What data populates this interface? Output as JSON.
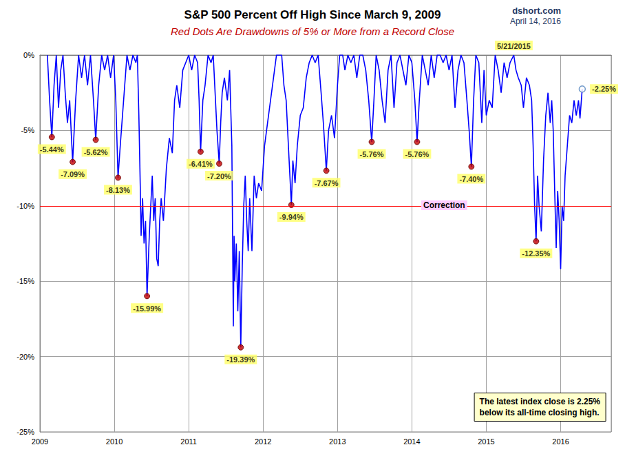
{
  "chart_data": {
    "type": "line",
    "title": "S&P 500 Percent Off High Since March 9, 2009",
    "subtitle": "Red Dots Are Drawdowns of 5% or More from a Record Close",
    "source": "dshort.com",
    "date": "April 14, 2016",
    "color": "#0000ff",
    "grid": true,
    "xlim": [
      2009,
      2016.68
    ],
    "xticks": [
      2009,
      2010,
      2011,
      2012,
      2013,
      2014,
      2015,
      2016
    ],
    "ylim": [
      -25,
      0
    ],
    "yticks": [
      {
        "value": -25,
        "label": "-25%"
      },
      {
        "value": -20,
        "label": "-20%"
      },
      {
        "value": -15,
        "label": "-15%"
      },
      {
        "value": -10,
        "label": "-10%"
      },
      {
        "value": -5,
        "label": "-5%"
      },
      {
        "value": 0,
        "label": "0%"
      }
    ],
    "x": [
      2009.1,
      2009.13,
      2009.16,
      2009.19,
      2009.22,
      2009.25,
      2009.28,
      2009.31,
      2009.34,
      2009.37,
      2009.4,
      2009.44,
      2009.48,
      2009.52,
      2009.56,
      2009.6,
      2009.64,
      2009.68,
      2009.72,
      2009.75,
      2009.79,
      2009.83,
      2009.87,
      2009.91,
      2009.95,
      2009.99,
      2010.02,
      2010.05,
      2010.08,
      2010.11,
      2010.14,
      2010.17,
      2010.21,
      2010.25,
      2010.29,
      2010.31,
      2010.33,
      2010.35,
      2010.36,
      2010.38,
      2010.4,
      2010.42,
      2010.44,
      2010.47,
      2010.49,
      2010.51,
      2010.53,
      2010.55,
      2010.57,
      2010.59,
      2010.61,
      2010.63,
      2010.66,
      2010.7,
      2010.74,
      2010.78,
      2010.81,
      2010.84,
      2010.88,
      2010.92,
      2010.96,
      2011.0,
      2011.04,
      2011.08,
      2011.12,
      2011.14,
      2011.16,
      2011.19,
      2011.22,
      2011.26,
      2011.3,
      2011.33,
      2011.36,
      2011.38,
      2011.41,
      2011.43,
      2011.45,
      2011.48,
      2011.52,
      2011.55,
      2011.58,
      2011.59,
      2011.6,
      2011.61,
      2011.62,
      2011.64,
      2011.66,
      2011.68,
      2011.7,
      2011.72,
      2011.74,
      2011.76,
      2011.78,
      2011.8,
      2011.82,
      2011.85,
      2011.88,
      2011.91,
      2011.94,
      2011.98,
      2012.02,
      2012.06,
      2012.1,
      2012.14,
      2012.18,
      2012.22,
      2012.25,
      2012.28,
      2012.31,
      2012.33,
      2012.35,
      2012.38,
      2012.4,
      2012.43,
      2012.46,
      2012.5,
      2012.54,
      2012.58,
      2012.62,
      2012.66,
      2012.7,
      2012.74,
      2012.78,
      2012.81,
      2012.85,
      2012.88,
      2012.92,
      2012.96,
      2013.0,
      2013.03,
      2013.07,
      2013.1,
      2013.14,
      2013.18,
      2013.22,
      2013.26,
      2013.3,
      2013.34,
      2013.38,
      2013.42,
      2013.46,
      2013.49,
      2013.52,
      2013.56,
      2013.6,
      2013.64,
      2013.68,
      2013.72,
      2013.76,
      2013.8,
      2013.84,
      2013.88,
      2013.92,
      2013.96,
      2014.0,
      2014.04,
      2014.07,
      2014.1,
      2014.14,
      2014.18,
      2014.22,
      2014.26,
      2014.3,
      2014.34,
      2014.38,
      2014.42,
      2014.46,
      2014.5,
      2014.54,
      2014.58,
      2014.62,
      2014.66,
      2014.7,
      2014.74,
      2014.77,
      2014.8,
      2014.83,
      2014.86,
      2014.9,
      2014.94,
      2014.97,
      2015.0,
      2015.04,
      2015.08,
      2015.12,
      2015.16,
      2015.2,
      2015.24,
      2015.28,
      2015.32,
      2015.37,
      2015.4,
      2015.43,
      2015.47,
      2015.5,
      2015.54,
      2015.58,
      2015.61,
      2015.63,
      2015.65,
      2015.67,
      2015.69,
      2015.71,
      2015.74,
      2015.77,
      2015.8,
      2015.83,
      2015.86,
      2015.88,
      2015.9,
      2015.92,
      2015.94,
      2015.96,
      2015.98,
      2016.0,
      2016.02,
      2016.04,
      2016.06,
      2016.09,
      2016.12,
      2016.15,
      2016.18,
      2016.21,
      2016.24,
      2016.26,
      2016.29
    ],
    "values": [
      0,
      -3,
      -5.44,
      -2,
      0,
      -3.5,
      -1,
      0,
      -2.5,
      -4.5,
      -3,
      -7.09,
      -3,
      0,
      -1.5,
      0,
      -2,
      0,
      -3,
      -5.62,
      -2,
      0,
      -1,
      0,
      -1.5,
      0,
      -3,
      -8.13,
      -6,
      -4,
      -2,
      0,
      -1,
      0,
      -0.5,
      0,
      -4,
      -9,
      -12,
      -9.5,
      -12.5,
      -11,
      -15.99,
      -12,
      -10,
      -8,
      -11,
      -9.5,
      -13.5,
      -14,
      -11,
      -9.5,
      -11,
      -7.5,
      -5.5,
      -6.5,
      -3,
      -2,
      -3.5,
      -1,
      -0.5,
      0,
      -1,
      0,
      -0.5,
      -3,
      -6.41,
      -3,
      -2,
      0,
      -0.5,
      0,
      -3,
      -5,
      -7.2,
      -4.5,
      -2.5,
      -1.5,
      -3,
      -1,
      -6,
      -12,
      -18,
      -12,
      -15,
      -12.5,
      -17,
      -13,
      -19.39,
      -14,
      -10,
      -8,
      -11,
      -13,
      -9.5,
      -13,
      -8,
      -9.5,
      -8.5,
      -9,
      -6,
      -4.5,
      -3,
      -1.5,
      0,
      0,
      0,
      -2,
      -3,
      -5,
      -7,
      -9.94,
      -7,
      -8.5,
      -6,
      -4,
      -3.5,
      -1.5,
      -0.5,
      0,
      -0.5,
      0,
      -2.5,
      -4.5,
      -7.67,
      -5,
      -4,
      -5.5,
      -2,
      0,
      0,
      -1,
      0,
      -0.5,
      0,
      -1.5,
      0,
      0,
      -1,
      -3,
      -5.76,
      -3,
      0,
      -1,
      -3,
      -4.5,
      -1,
      0,
      -3.5,
      -0.5,
      0,
      -1,
      -2,
      0,
      -0.5,
      -3,
      -5.76,
      -3,
      0,
      -1,
      -2,
      0,
      -1.5,
      0,
      0,
      -0.5,
      0,
      -1,
      0,
      -3.5,
      -1,
      0,
      -0.5,
      -3,
      -5,
      -7.4,
      -3,
      0,
      -0.5,
      -4.5,
      -1,
      -4,
      -3,
      -3.5,
      0,
      -1,
      -2.5,
      -0.5,
      -1.5,
      -0.5,
      0,
      -1,
      -1.5,
      -2,
      -3.5,
      -1.5,
      -2,
      -3,
      -6,
      -10,
      -12.35,
      -8,
      -10,
      -11.7,
      -7,
      -4,
      -2.5,
      -4.5,
      -3,
      -5,
      -9,
      -12.8,
      -9,
      -11,
      -14.2,
      -10,
      -11,
      -8,
      -6,
      -4,
      -4.5,
      -3,
      -4,
      -3,
      -4.2,
      -2.25
    ],
    "drawdowns": {
      "color": "#c00000",
      "x": [
        2009.16,
        2009.44,
        2009.75,
        2010.05,
        2010.44,
        2011.16,
        2011.41,
        2011.7,
        2012.38,
        2012.85,
        2013.46,
        2014.07,
        2014.8,
        2015.67
      ],
      "values": [
        -5.44,
        -7.09,
        -5.62,
        -8.13,
        -15.99,
        -6.41,
        -7.2,
        -19.39,
        -9.94,
        -7.67,
        -5.76,
        -5.76,
        -7.4,
        -12.35
      ],
      "value_labels": [
        "-5.44%",
        "-7.09%",
        "-5.62%",
        "-8.13%",
        "-15.99%",
        "-6.41%",
        "-7.20%",
        "-19.39%",
        "-9.94%",
        "-7.67%",
        "-5.76%",
        "-5.76%",
        "-7.40%",
        "-12.35%"
      ]
    },
    "latest": {
      "x": 2016.29,
      "value": -2.25,
      "label": "-2.25%",
      "color": "#4f81bd"
    },
    "record_high": {
      "x": 2015.37,
      "value": 0,
      "label": "5/21/2015"
    },
    "reference_line": {
      "value": -10,
      "label": "Correction",
      "color": "#ff0000"
    },
    "note": [
      "The latest index close is 2.25%",
      "below its all-time closing high."
    ]
  }
}
